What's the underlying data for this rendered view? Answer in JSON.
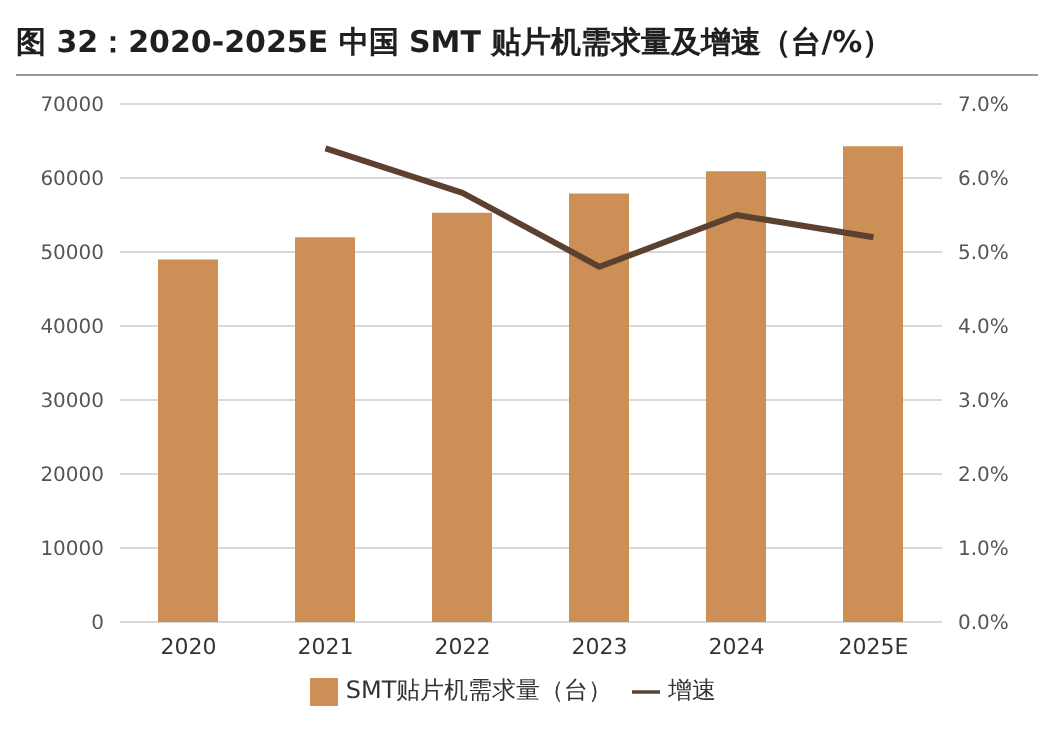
{
  "chart_data": {
    "type": "bar",
    "title": "图 32：2020-2025E 中国 SMT 贴片机需求量及增速（台/%）",
    "categories": [
      "2020",
      "2021",
      "2022",
      "2023",
      "2024",
      "2025E"
    ],
    "series": [
      {
        "name": "SMT贴片机需求量（台）",
        "color": "#cc8f55",
        "values": [
          49000,
          52000,
          55300,
          57900,
          60900,
          64300
        ]
      },
      {
        "name": "增速",
        "type": "line",
        "axis": "y2",
        "color": "#5c4030",
        "values": [
          null,
          6.4,
          5.8,
          4.8,
          5.5,
          5.2
        ]
      }
    ],
    "ylim": [
      0,
      70000
    ],
    "yticks": [
      0,
      10000,
      20000,
      30000,
      40000,
      50000,
      60000,
      70000
    ],
    "y2lim": [
      0,
      7
    ],
    "y2ticks": [
      {
        "value": 0,
        "label": "0.0%"
      },
      {
        "value": 1,
        "label": "1.0%"
      },
      {
        "value": 2,
        "label": "2.0%"
      },
      {
        "value": 3,
        "label": "3.0%"
      },
      {
        "value": 4,
        "label": "4.0%"
      },
      {
        "value": 5,
        "label": "5.0%"
      },
      {
        "value": 6,
        "label": "6.0%"
      },
      {
        "value": 7,
        "label": "7.0%"
      }
    ],
    "grid": "y",
    "legend": "bottom",
    "marker": "none"
  }
}
